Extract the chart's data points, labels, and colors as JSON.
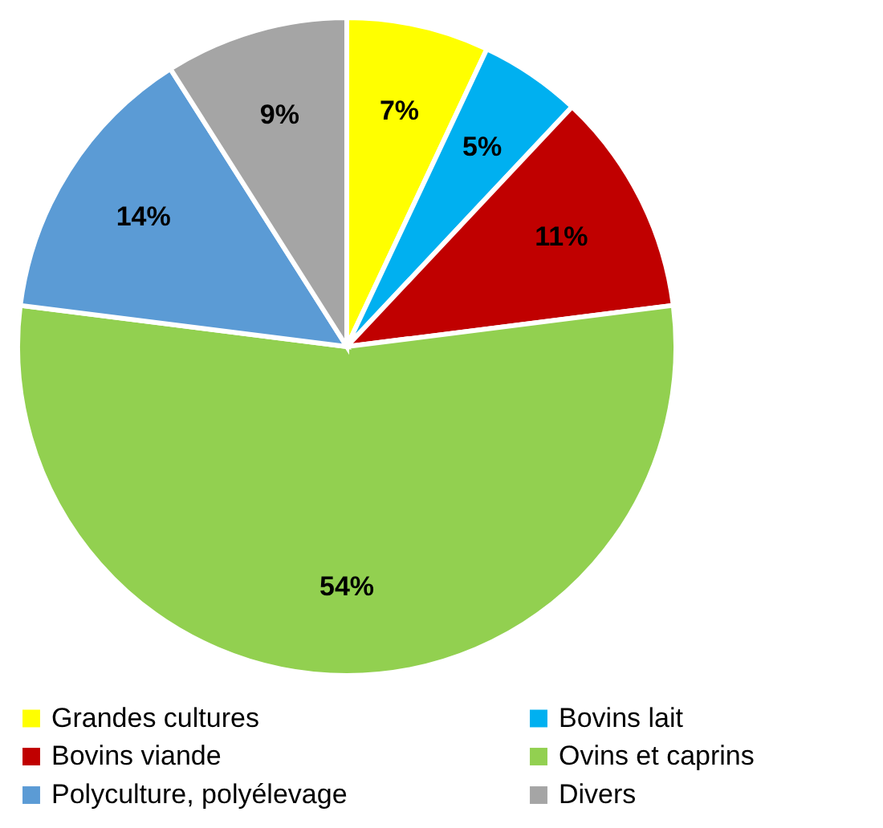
{
  "chart_data": {
    "type": "pie",
    "categories": [
      "Grandes cultures",
      "Bovins lait",
      "Bovins viande",
      "Ovins et caprins",
      "Polyculture, polyélevage",
      "Divers"
    ],
    "values": [
      7,
      5,
      11,
      54,
      14,
      9
    ],
    "colors": [
      "#ffff00",
      "#00b0f0",
      "#c00000",
      "#92d050",
      "#5b9bd5",
      "#a5a5a5"
    ],
    "value_labels": [
      "7%",
      "5%",
      "11%",
      "54%",
      "14%",
      "9%"
    ],
    "legend": "bottom"
  }
}
